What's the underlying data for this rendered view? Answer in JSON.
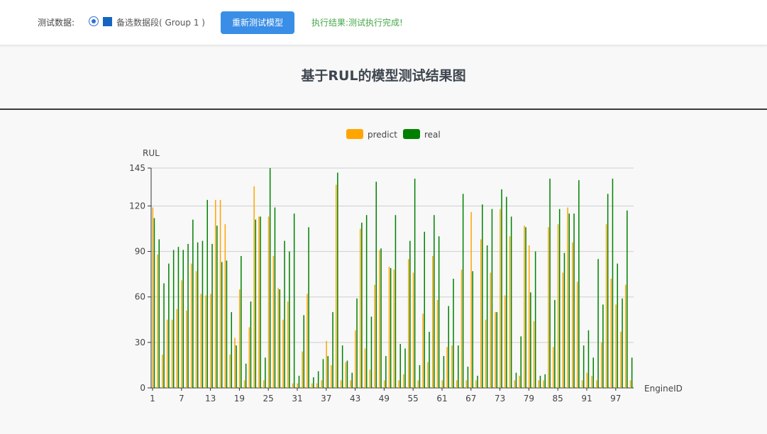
{
  "toolbar": {
    "label": "测试数据:",
    "option_label": "备选数据段( Group 1 )",
    "button_label": "重新测试模型",
    "result_text": "执行结果:测试执行完成!"
  },
  "page_title": "基于RUL的模型测试结果图",
  "colors": {
    "predict": "#ffa500",
    "real": "#008000",
    "button": "#3a8ee6",
    "result": "#47a84a"
  },
  "chart_data": {
    "type": "bar",
    "title": "基于RUL的模型测试结果图",
    "xlabel": "EngineID",
    "ylabel": "RUL",
    "ylim": [
      0,
      145
    ],
    "yticks": [
      0,
      30,
      60,
      90,
      120,
      145
    ],
    "grid": true,
    "legend": "top-center",
    "categories": [
      "1",
      "2",
      "3",
      "4",
      "5",
      "6",
      "7",
      "8",
      "9",
      "10",
      "11",
      "12",
      "13",
      "14",
      "15",
      "16",
      "17",
      "18",
      "19",
      "20",
      "21",
      "22",
      "23",
      "24",
      "25",
      "26",
      "27",
      "28",
      "29",
      "30",
      "31",
      "32",
      "33",
      "34",
      "35",
      "36",
      "37",
      "38",
      "39",
      "40",
      "41",
      "42",
      "43",
      "44",
      "45",
      "46",
      "47",
      "48",
      "49",
      "50",
      "51",
      "52",
      "53",
      "54",
      "55",
      "56",
      "57",
      "58",
      "59",
      "60",
      "61",
      "62",
      "63",
      "64",
      "65",
      "66",
      "67",
      "68",
      "69",
      "70",
      "71",
      "72",
      "73",
      "74",
      "75",
      "76",
      "77",
      "78",
      "79",
      "80",
      "81",
      "82",
      "83",
      "84",
      "85",
      "86",
      "87",
      "88",
      "89",
      "90",
      "91",
      "92",
      "93",
      "94",
      "95",
      "96",
      "97",
      "98",
      "99",
      "100"
    ],
    "xtick_labels": [
      "1",
      "7",
      "13",
      "19",
      "25",
      "31",
      "37",
      "43",
      "49",
      "55",
      "61",
      "67",
      "73",
      "79",
      "85",
      "91",
      "97"
    ],
    "series": [
      {
        "name": "predict",
        "color": "#ffa500",
        "values": [
          119,
          88,
          22,
          45,
          45,
          52,
          71,
          51,
          82,
          77,
          62,
          61,
          62,
          124,
          124,
          108,
          22,
          33,
          65,
          5,
          40,
          133,
          113,
          5,
          113,
          87,
          66,
          45,
          57,
          3,
          3,
          24,
          62,
          3,
          3,
          5,
          31,
          15,
          134,
          5,
          17,
          5,
          38,
          105,
          26,
          12,
          68,
          91,
          5,
          80,
          78,
          5,
          9,
          85,
          76,
          5,
          49,
          17,
          87,
          58,
          5,
          27,
          28,
          5,
          78,
          5,
          116,
          5,
          98,
          45,
          76,
          50,
          118,
          61,
          100,
          5,
          8,
          107,
          94,
          44,
          5,
          5,
          106,
          27,
          108,
          76,
          119,
          96,
          70,
          5,
          10,
          8,
          5,
          30,
          108,
          72,
          55,
          37,
          68,
          5
        ]
      },
      {
        "name": "real",
        "color": "#008000",
        "values": [
          112,
          98,
          69,
          82,
          91,
          93,
          91,
          95,
          111,
          96,
          97,
          124,
          95,
          107,
          83,
          84,
          50,
          28,
          87,
          16,
          57,
          111,
          113,
          20,
          145,
          119,
          65,
          97,
          90,
          115,
          8,
          48,
          106,
          7,
          11,
          19,
          21,
          50,
          142,
          28,
          18,
          10,
          59,
          109,
          114,
          47,
          136,
          92,
          21,
          79,
          114,
          29,
          26,
          97,
          138,
          15,
          103,
          37,
          114,
          100,
          21,
          54,
          72,
          28,
          128,
          14,
          77,
          8,
          121,
          94,
          118,
          50,
          131,
          126,
          113,
          10,
          34,
          106,
          63,
          90,
          8,
          9,
          138,
          58,
          118,
          89,
          115,
          115,
          137,
          28,
          38,
          20,
          85,
          55,
          128,
          138,
          82,
          59,
          117,
          20
        ]
      }
    ]
  }
}
